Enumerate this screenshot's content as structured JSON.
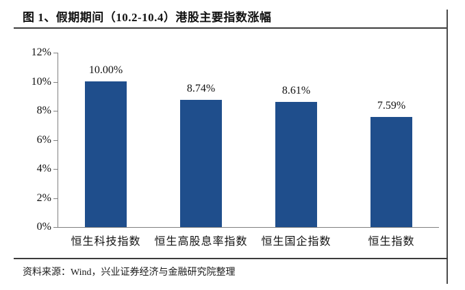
{
  "figure": {
    "title": "图 1、假期期间（10.2-10.4）港股主要指数涨幅",
    "source": "资料来源：Wind，兴业证券经济与金融研究院整理"
  },
  "chart_data": {
    "type": "bar",
    "title": "假期期间（10.2-10.4）港股主要指数涨幅",
    "categories": [
      "恒生科技指数",
      "恒生高股息率指数",
      "恒生国企指数",
      "恒生指数"
    ],
    "values": [
      10.0,
      8.74,
      8.61,
      7.59
    ],
    "data_labels": [
      "10.00%",
      "8.74%",
      "8.61%",
      "7.59%"
    ],
    "y_ticks": [
      "12%",
      "10%",
      "8%",
      "6%",
      "4%",
      "2%",
      "0%"
    ],
    "ylim": [
      0,
      12
    ],
    "xlabel": "",
    "ylabel": "",
    "grid": false,
    "legend": "none",
    "bar_color": "#1F4E8C",
    "axis_color": "#7F7F7F"
  }
}
